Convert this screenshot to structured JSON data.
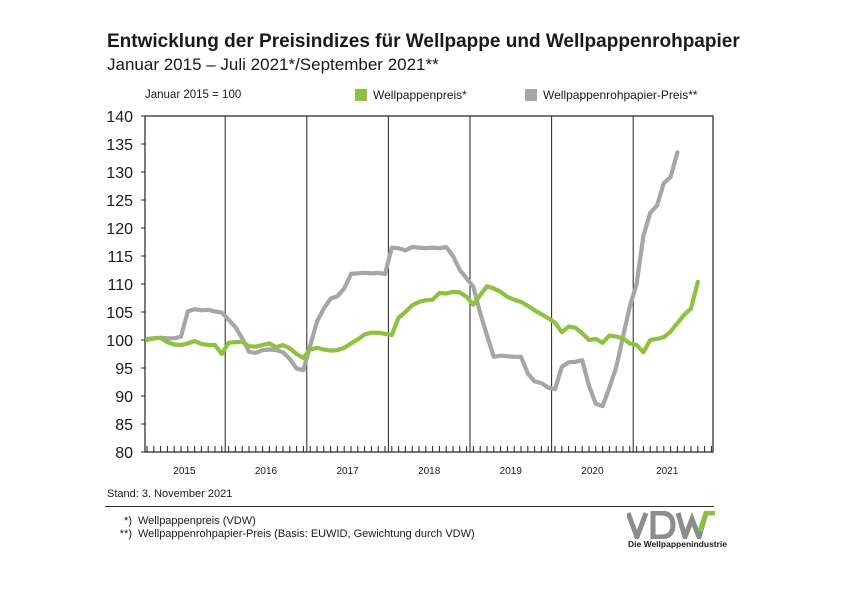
{
  "header": {
    "title": "Entwicklung der Preisindizes für Wellpappe und Wellpappenrohpapier",
    "subtitle": "Januar 2015 – Juli 2021*/September 2021**",
    "base_note": "Januar 2015 = 100"
  },
  "legend": [
    {
      "label": "Wellpappenpreis*",
      "color": "#8dc13f"
    },
    {
      "label": "Wellpappenrohpapier-Preis**",
      "color": "#a6a6a6"
    }
  ],
  "chart_data": {
    "type": "line",
    "xlabel": "",
    "ylabel": "",
    "ylim": [
      80,
      140
    ],
    "yticks": [
      "140",
      "135",
      "130",
      "125",
      "120",
      "115",
      "110",
      "105",
      "100",
      "95",
      "90",
      "85",
      "80"
    ],
    "year_labels": [
      "2015",
      "2016",
      "2017",
      "2018",
      "2019",
      "2020",
      "2021"
    ],
    "x_unit": "months since Jan 2015 (0 = Jan 2015)",
    "grid": "vertical lines at year boundaries",
    "series": [
      {
        "name": "Wellpappenpreis*",
        "color": "#8dc13f",
        "values": [
          100.0,
          100.3,
          100.4,
          99.6,
          99.2,
          99.1,
          99.4,
          99.8,
          99.3,
          99.1,
          99.1,
          97.5,
          99.5,
          99.6,
          99.7,
          98.9,
          98.8,
          99.1,
          99.4,
          98.7,
          99.1,
          98.5,
          97.5,
          96.8,
          98.3,
          98.6,
          98.3,
          98.1,
          98.2,
          98.6,
          99.4,
          100.1,
          101.0,
          101.3,
          101.3,
          101.1,
          100.9,
          104.0,
          105.0,
          106.2,
          106.8,
          107.1,
          107.2,
          108.4,
          108.3,
          108.6,
          108.5,
          107.7,
          106.3,
          108.0,
          109.6,
          109.2,
          108.6,
          107.7,
          107.2,
          106.8,
          106.1,
          105.3,
          104.6,
          103.9,
          103.1,
          101.4,
          102.4,
          102.2,
          101.2,
          100.0,
          100.2,
          99.5,
          100.8,
          100.6,
          100.3,
          99.4,
          99.1,
          97.8,
          100.0,
          100.2,
          100.5,
          101.5,
          103.0,
          104.5,
          105.6,
          110.4
        ],
        "smooth": false
      },
      {
        "name": "Wellpappenrohpapier-Preis**",
        "color": "#a6a6a6",
        "values": [
          100.2,
          100.3,
          100.4,
          100.3,
          100.3,
          100.6,
          105.1,
          105.5,
          105.3,
          105.4,
          105.1,
          104.9,
          103.6,
          102.3,
          100.3,
          97.9,
          97.7,
          98.2,
          98.3,
          98.2,
          97.8,
          96.6,
          94.9,
          94.6,
          99.0,
          103.3,
          105.6,
          107.4,
          107.8,
          109.2,
          111.8,
          111.9,
          112.0,
          111.9,
          112.0,
          111.8,
          116.5,
          116.4,
          116.0,
          116.6,
          116.5,
          116.4,
          116.5,
          116.4,
          116.6,
          115.0,
          112.5,
          111.0,
          109.5,
          104.8,
          100.8,
          97.0,
          97.2,
          97.1,
          97.0,
          97.0,
          94.0,
          92.6,
          92.3,
          91.5,
          91.2,
          95.2,
          96.0,
          96.1,
          96.4,
          91.8,
          88.6,
          88.2,
          91.5,
          95.1,
          100.6,
          106.0,
          110.0,
          118.6,
          122.7,
          124.0,
          128.0,
          129.1,
          133.5
        ],
        "smooth": false
      }
    ]
  },
  "footer": {
    "stand": "Stand: 3. November 2021",
    "footnotes": [
      {
        "marker": "*)",
        "text": "Wellpappenpreis (VDW)"
      },
      {
        "marker": "**)",
        "text": "Wellpappenrohpapier-Preis (Basis: EUWID, Gewichtung durch VDW)"
      }
    ]
  },
  "logo": {
    "text": "VDW",
    "tagline": "Die Wellpappenindustrie",
    "colors": {
      "letters": "#8c8c8c",
      "accent": "#8dc13f"
    }
  }
}
